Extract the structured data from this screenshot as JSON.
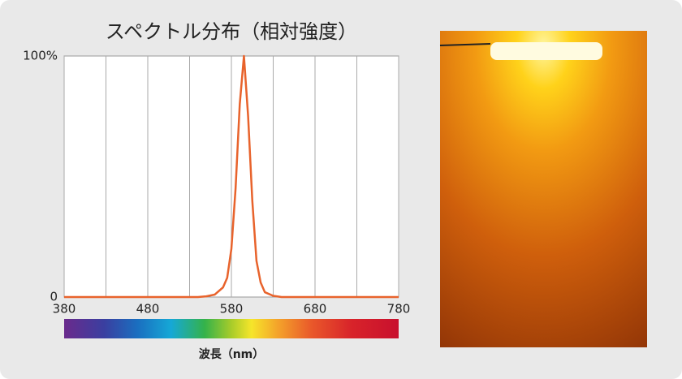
{
  "chart_data": {
    "type": "line",
    "title": "スペクトル分布（相対強度）",
    "xlabel": "波長（nm）",
    "x": [
      380,
      540,
      550,
      560,
      570,
      575,
      580,
      585,
      590,
      595,
      600,
      605,
      610,
      615,
      620,
      630,
      640,
      780
    ],
    "series": [
      {
        "name": "relative intensity",
        "color": "#e8632c",
        "values": [
          0,
          0,
          0.3,
          1,
          4,
          8,
          20,
          45,
          80,
          100,
          75,
          40,
          15,
          6,
          2,
          0.5,
          0,
          0
        ]
      }
    ],
    "xlim": [
      380,
      780
    ],
    "xticks": [
      380,
      480,
      580,
      680,
      780
    ],
    "minor_xticks": [
      430,
      530,
      630,
      730
    ],
    "ylim": [
      0,
      100
    ],
    "yticks": [
      0,
      {
        "value": 100,
        "label": "100%"
      }
    ],
    "grid": true
  }
}
